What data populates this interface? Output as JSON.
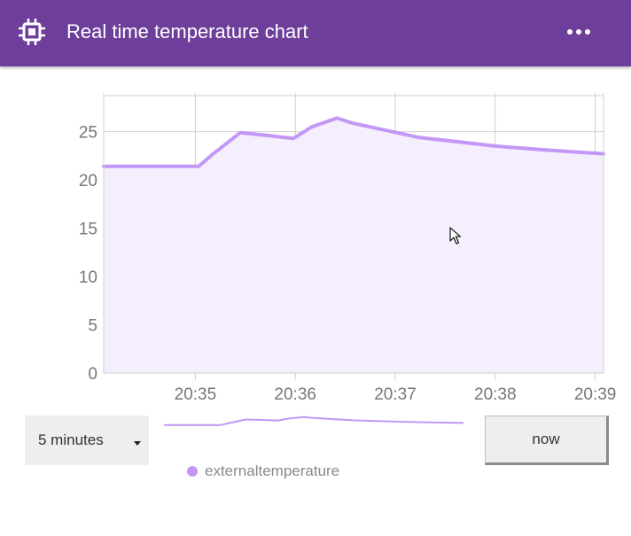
{
  "header": {
    "title": "Real time temperature chart",
    "icon": "chip-icon",
    "menu_icon": "more-horizontal-icon"
  },
  "colors": {
    "header_bg": "#6e3f9a",
    "series_line": "#c397f5",
    "series_fill": "#f5eefd",
    "grid": "#d0d0d0"
  },
  "controls": {
    "timespan_label": "5 minutes",
    "now_label": "now"
  },
  "legend": {
    "label": "externaltemperature"
  },
  "chart_data": {
    "type": "area",
    "x_tick_labels": [
      "20:35",
      "20:36",
      "20:37",
      "20:38",
      "20:39"
    ],
    "y_tick_labels": [
      "0",
      "5",
      "10",
      "15",
      "20",
      "25"
    ],
    "ylim": [
      0,
      29
    ],
    "xlim": [
      "20:34:05",
      "20:39:05"
    ],
    "grid": true,
    "legend_position": "bottom",
    "series": [
      {
        "name": "externaltemperature",
        "x": [
          "20:34:05",
          "20:35:02",
          "20:35:10",
          "20:35:27",
          "20:35:43",
          "20:35:59",
          "20:36:10",
          "20:36:25",
          "20:36:34",
          "20:36:50",
          "20:37:14",
          "20:37:35",
          "20:38:00",
          "20:38:30",
          "20:39:05"
        ],
        "values": [
          21.4,
          21.4,
          22.6,
          24.9,
          24.6,
          24.3,
          25.5,
          26.4,
          25.9,
          25.3,
          24.4,
          24.0,
          23.5,
          23.1,
          22.7
        ]
      }
    ]
  }
}
